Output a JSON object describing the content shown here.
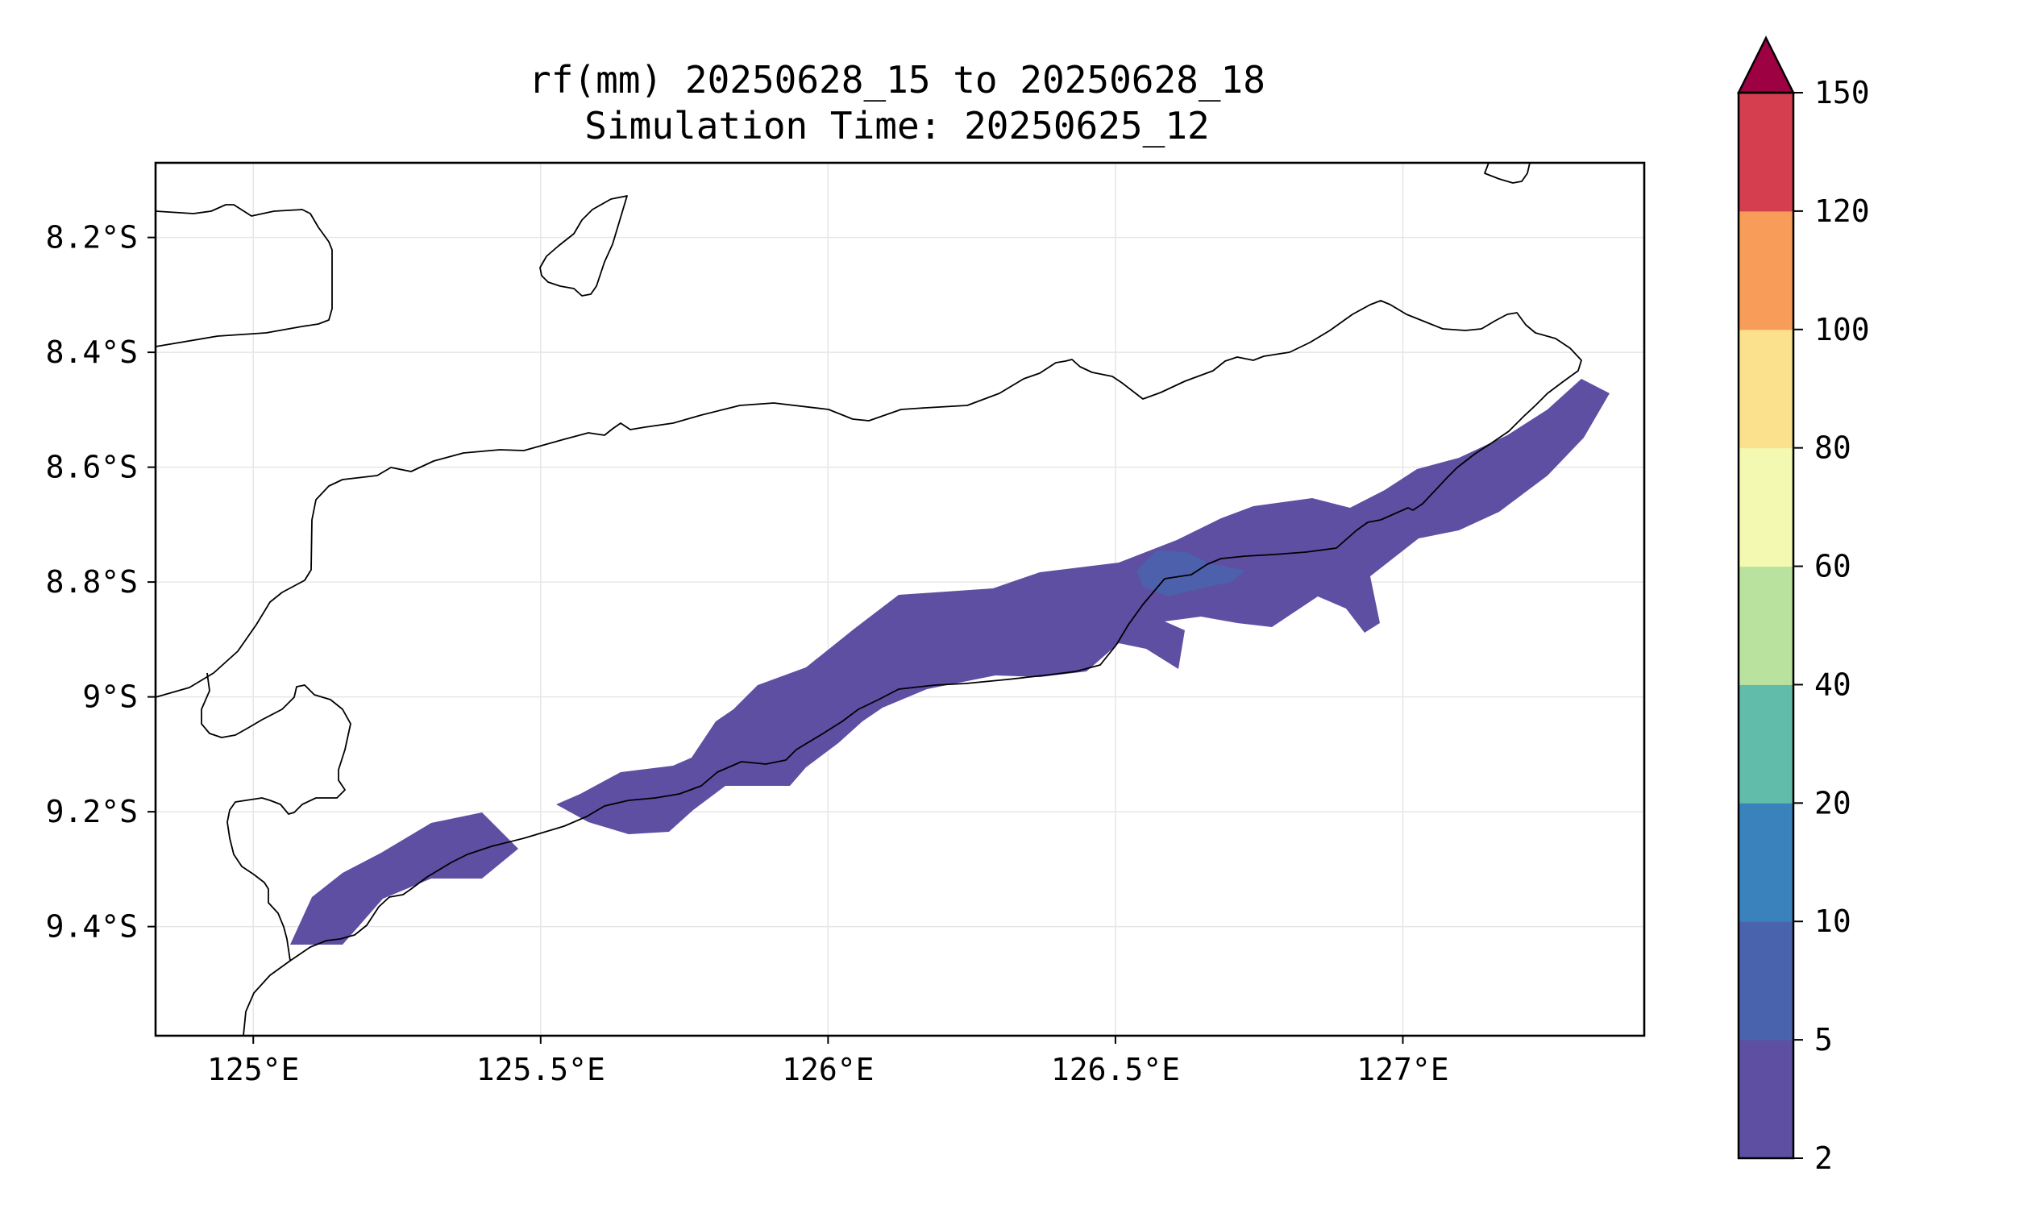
{
  "title": {
    "line1": "rf(mm) 20250628_15 to 20250628_18",
    "line2": "Simulation Time: 20250625_12"
  },
  "map": {
    "lon_range": [
      124.83,
      127.42
    ],
    "lat_range": [
      -9.59,
      -8.07
    ],
    "x_ticks": [
      {
        "value": 125.0,
        "label": "125°E"
      },
      {
        "value": 125.5,
        "label": "125.5°E"
      },
      {
        "value": 126.0,
        "label": "126°E"
      },
      {
        "value": 126.5,
        "label": "126.5°E"
      },
      {
        "value": 127.0,
        "label": "127°E"
      }
    ],
    "y_ticks": [
      {
        "value": -8.2,
        "label": "8.2°S"
      },
      {
        "value": -8.4,
        "label": "8.4°S"
      },
      {
        "value": -8.6,
        "label": "8.6°S"
      },
      {
        "value": -8.8,
        "label": "8.8°S"
      },
      {
        "value": -9.0,
        "label": "9°S"
      },
      {
        "value": -9.2,
        "label": "9.2°S"
      },
      {
        "value": -9.4,
        "label": "9.4°S"
      }
    ],
    "grid": true,
    "coastline_color": "#000000",
    "grid_color": "#e6e6e6"
  },
  "colorbar": {
    "levels": [
      2,
      5,
      10,
      20,
      40,
      60,
      80,
      100,
      120,
      150
    ],
    "tick_labels": [
      "2",
      "5",
      "10",
      "20",
      "40",
      "60",
      "80",
      "100",
      "120",
      "150"
    ],
    "colors": [
      "#5e4fa2",
      "#4a63ad",
      "#3a82bc",
      "#61bda9",
      "#b9e29e",
      "#f3f9b0",
      "#fbe08e",
      "#f89c59",
      "#d53e4f"
    ],
    "extend_color": "#9e0142",
    "extend": "max",
    "placement": "right"
  },
  "chart_data": {
    "type": "heatmap",
    "variable": "rf(mm)",
    "title": "rf(mm) 20250628_15 to 20250628_18",
    "subtitle": "Simulation Time: 20250625_12",
    "xlim": [
      124.83,
      127.42
    ],
    "ylim": [
      -9.59,
      -8.07
    ],
    "value_bins": [
      {
        "range": [
          2,
          5
        ],
        "color": "#5e4fa2",
        "region": "main rain band along south coast, approx 125.05°E 9.45°S to 127.3°E 8.48°S"
      },
      {
        "range": [
          5,
          10
        ],
        "color": "#4a63ad",
        "region": "small patch near 126.6°E 8.8°S"
      }
    ]
  }
}
